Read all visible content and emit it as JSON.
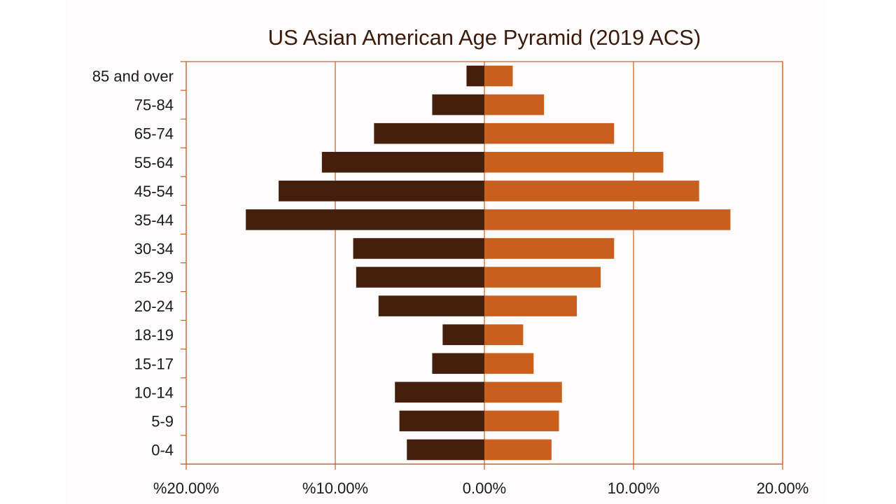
{
  "colors": {
    "left_series": "#44200c",
    "right_series": "#c95f1d",
    "axis": "#c95f1d",
    "grid": "#c95f1d"
  },
  "chart_data": {
    "type": "bar",
    "orientation": "horizontal",
    "title": "US Asian American Age Pyramid (2019 ACS)",
    "categories": [
      "85 and over",
      "75-84",
      "65-74",
      "55-64",
      "45-54",
      "35-44",
      "30-34",
      "25-29",
      "20-24",
      "18-19",
      "15-17",
      "10-14",
      "5-9",
      "0-4"
    ],
    "series": [
      {
        "values": [
          -1.2,
          -3.5,
          -7.4,
          -10.9,
          -13.8,
          -16.0,
          -8.8,
          -8.6,
          -7.1,
          -2.8,
          -3.5,
          -6.0,
          -5.7,
          -5.2
        ]
      },
      {
        "values": [
          1.9,
          4.0,
          8.7,
          12.0,
          14.4,
          16.5,
          8.7,
          7.8,
          6.2,
          2.6,
          3.3,
          5.2,
          5.0,
          4.5
        ]
      }
    ],
    "xlim": [
      -20,
      20
    ],
    "xticks": [
      -20,
      -10,
      0,
      10,
      20
    ],
    "xtick_labels": [
      "%20.00%",
      "%10.00%",
      "0.00%",
      "10.00%",
      "20.00%"
    ],
    "grid": true,
    "legend": "none"
  }
}
